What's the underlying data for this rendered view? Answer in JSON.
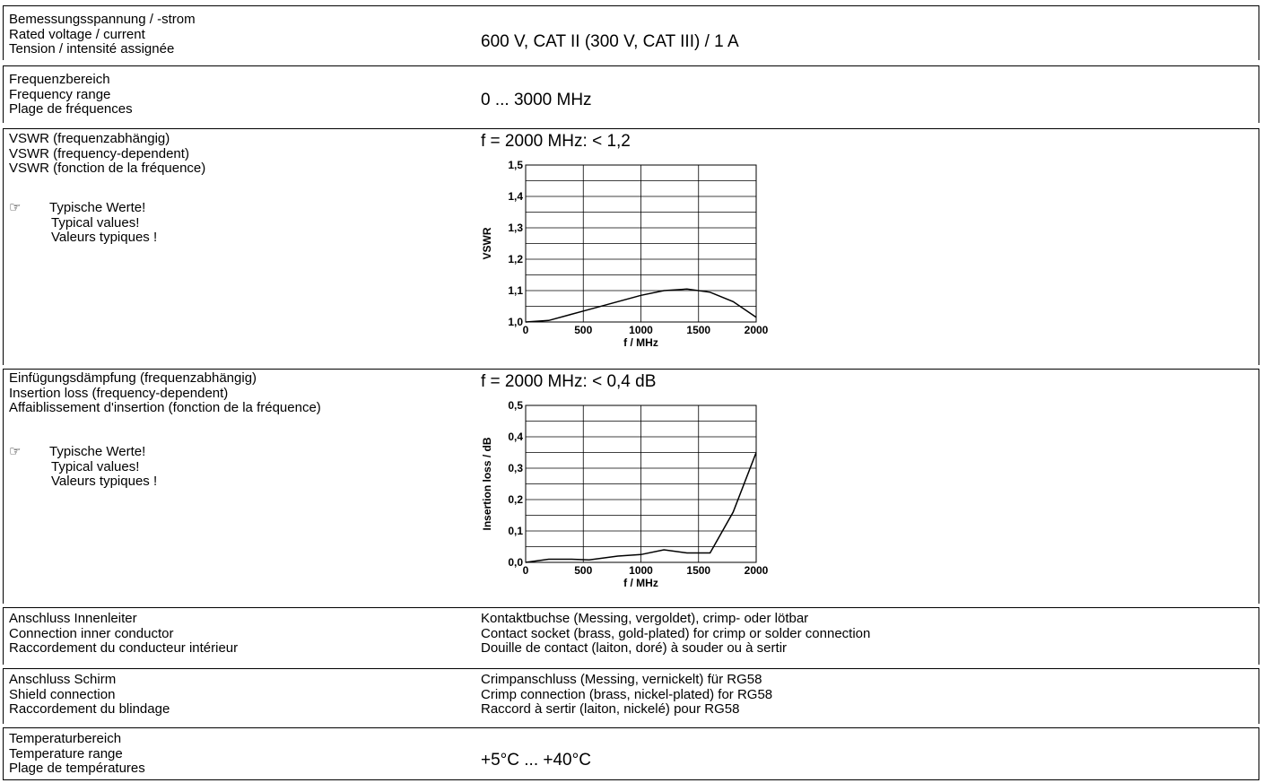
{
  "rows": {
    "rated": {
      "labels": [
        "Bemessungsspannung / -strom",
        "Rated voltage / current",
        "Tension / intensité assignée"
      ],
      "value": "600 V, CAT II  (300 V, CAT III)  /  1 A"
    },
    "freq": {
      "labels": [
        "Frequenzbereich",
        "Frequency range",
        "Plage de fréquences"
      ],
      "value": "0 ... 3000 MHz"
    },
    "vswr": {
      "labels": [
        "VSWR (frequenzabhängig)",
        "VSWR (frequency-dependent)",
        "VSWR (fonction de la fréquence)"
      ],
      "note_icon": "pointing-hand-icon",
      "note_icon_glyph": "☞",
      "note": [
        "Typische Werte!",
        "Typical values!",
        "Valeurs typiques !"
      ],
      "value": "f = 2000 MHz: < 1,2"
    },
    "il": {
      "labels": [
        "Einfügungsdämpfung (frequenzabhängig)",
        "Insertion loss (frequency-dependent)",
        "Affaiblissement d'insertion (fonction de la fréquence)"
      ],
      "note_icon": "pointing-hand-icon",
      "note_icon_glyph": "☞",
      "note": [
        "Typische Werte!",
        "Typical values!",
        "Valeurs typiques !"
      ],
      "value": "f = 2000 MHz: < 0,4 dB"
    },
    "inner": {
      "labels": [
        "Anschluss Innenleiter",
        "Connection inner conductor",
        "Raccordement du conducteur intérieur"
      ],
      "values": [
        "Kontaktbuchse (Messing, vergoldet), crimp- oder lötbar",
        "Contact socket (brass, gold-plated) for crimp or solder connection",
        "Douille de contact (laiton, doré) à souder ou à sertir"
      ]
    },
    "shield": {
      "labels": [
        "Anschluss Schirm",
        "Shield connection",
        "Raccordement du blindage"
      ],
      "values": [
        "Crimpanschluss (Messing, vernickelt) für RG58",
        "Crimp connection (brass, nickel-plated) for RG58",
        "Raccord à sertir (laiton, nickelé) pour RG58"
      ]
    },
    "temp": {
      "labels": [
        "Temperaturbereich",
        "Temperature range",
        "Plage de températures"
      ],
      "value": "+5°C ... +40°C"
    }
  },
  "chart_data": [
    {
      "type": "line",
      "xlabel": "f / MHz",
      "ylabel": "VSWR",
      "xlim": [
        0,
        2000
      ],
      "ylim": [
        1.0,
        1.5
      ],
      "x_ticks": [
        "0",
        "500",
        "1000",
        "1500",
        "2000"
      ],
      "y_ticks": [
        "1,0",
        "1,1",
        "1,2",
        "1,3",
        "1,4",
        "1,5"
      ],
      "grid": true,
      "series": [
        {
          "x": [
            0,
            200,
            500,
            800,
            1000,
            1200,
            1400,
            1600,
            1800,
            2000
          ],
          "y": [
            1.0,
            1.005,
            1.035,
            1.065,
            1.085,
            1.1,
            1.105,
            1.095,
            1.065,
            1.015
          ]
        }
      ]
    },
    {
      "type": "line",
      "xlabel": "f / MHz",
      "ylabel": "Insertion loss / dB",
      "xlim": [
        0,
        2000
      ],
      "ylim": [
        0.0,
        0.5
      ],
      "x_ticks": [
        "0",
        "500",
        "1000",
        "1500",
        "2000"
      ],
      "y_ticks": [
        "0,0",
        "0,1",
        "0,2",
        "0,3",
        "0,4",
        "0,5"
      ],
      "grid": true,
      "series": [
        {
          "x": [
            0,
            200,
            400,
            550,
            800,
            1000,
            1200,
            1400,
            1600,
            1800,
            2000
          ],
          "y": [
            0.0,
            0.01,
            0.01,
            0.008,
            0.02,
            0.025,
            0.04,
            0.03,
            0.03,
            0.16,
            0.35
          ]
        }
      ]
    }
  ]
}
